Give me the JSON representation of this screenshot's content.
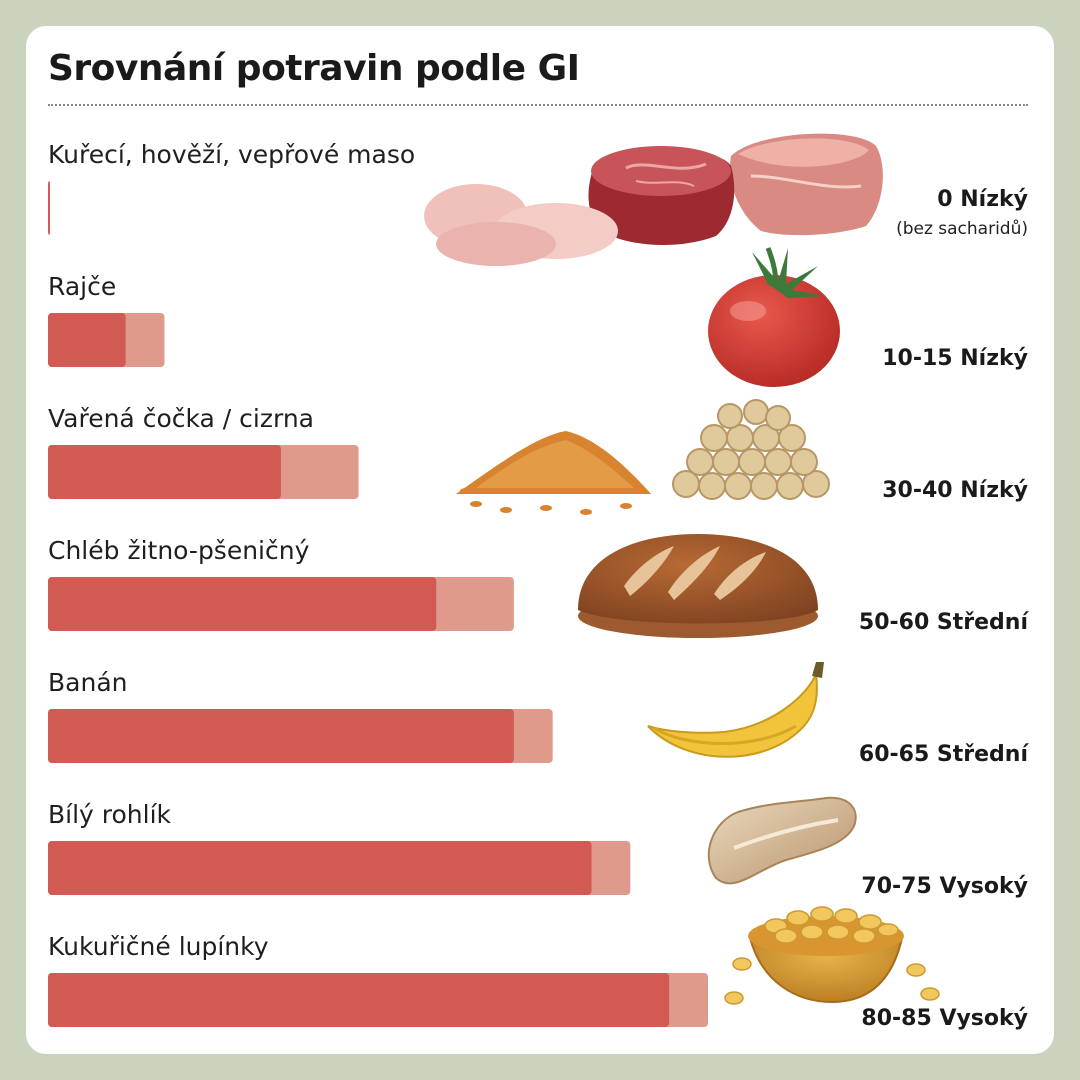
{
  "chart_data": {
    "type": "bar",
    "title": "Srovnání potravin podle GI",
    "xlim": [
      0,
      85
    ],
    "categories": [
      "Kuřecí, hověží, vepřové maso",
      "Rajče",
      "Vařená čočka / cizrna",
      "Chléb žitno-pšeničný",
      "Banán",
      "Bílý rohlík",
      "Kukuřičné lupínky"
    ],
    "series": [
      {
        "name": "",
        "values": [
          0,
          10,
          30,
          50,
          60,
          70,
          80
        ]
      },
      {
        "name": "",
        "values": [
          0,
          15,
          40,
          60,
          65,
          75,
          85
        ]
      }
    ],
    "value_labels": [
      "0 Nízký",
      "10-15 Nízký",
      "30-40 Nízký",
      "50-60 Střední",
      "60-65 Střední",
      "70-75 Vysoký",
      "80-85 Vysoký"
    ],
    "annotations": [
      "(bez sacharidů)"
    ],
    "colors": {
      "low": "#d15b52",
      "high": "#e09a8b",
      "background": "#c9d3bd"
    },
    "icons": [
      "meat-illustration",
      "tomato-illustration",
      "lentils-chickpeas-illustration",
      "bread-illustration",
      "banana-illustration",
      "bread-roll-illustration",
      "cornflakes-illustration"
    ]
  }
}
